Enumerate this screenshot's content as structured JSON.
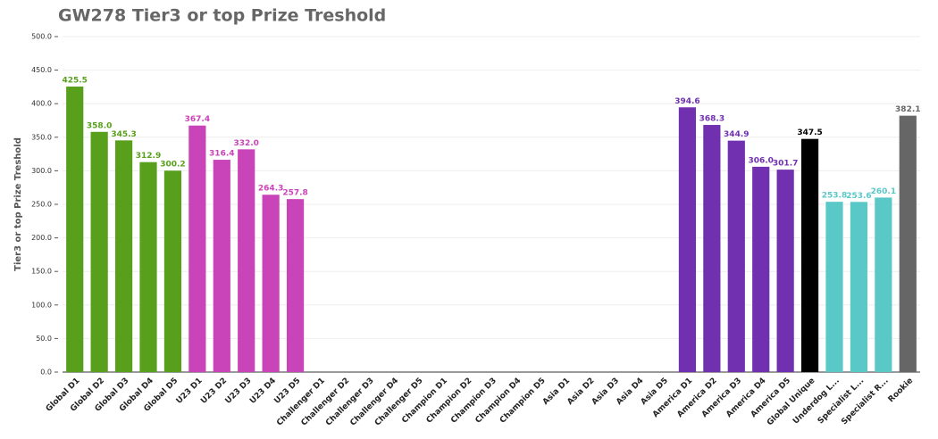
{
  "chart_data": {
    "type": "bar",
    "title": "GW278 Tier3 or top Prize Treshold",
    "y_label": "Tier3 or top Prize Treshold",
    "categories": [
      "Global D1",
      "Global D2",
      "Global D3",
      "Global D4",
      "Global D5",
      "U23 D1",
      "U23 D2",
      "U23 D3",
      "U23 D4",
      "U23 D5",
      "Challenger D1",
      "Challenger D2",
      "Challenger D3",
      "Challenger D4",
      "Challenger D5",
      "Champion D1",
      "Champion D2",
      "Champion D3",
      "Champion D4",
      "Champion D5",
      "Asia D1",
      "Asia D2",
      "Asia D3",
      "Asia D4",
      "Asia D5",
      "America D1",
      "America D2",
      "America D3",
      "America D4",
      "America D5",
      "Global Unique",
      "Underdog L...",
      "Specialist L...",
      "Specialist R...",
      "Rookie"
    ],
    "values": [
      425.5,
      358.0,
      345.3,
      312.9,
      300.2,
      367.4,
      316.4,
      332.0,
      264.3,
      257.8,
      null,
      null,
      null,
      null,
      null,
      null,
      null,
      null,
      null,
      null,
      null,
      null,
      null,
      null,
      null,
      394.6,
      368.3,
      344.9,
      306.0,
      301.7,
      347.5,
      253.8,
      253.6,
      260.1,
      382.1
    ],
    "value_labels": [
      "425.5",
      "358.0",
      "345.3",
      "312.9",
      "300.2",
      "367.4",
      "316.4",
      "332.0",
      "264.3",
      "257.8",
      null,
      null,
      null,
      null,
      null,
      null,
      null,
      null,
      null,
      null,
      null,
      null,
      null,
      null,
      null,
      "394.6",
      "368.3",
      "344.9",
      "306.0",
      "301.7",
      "347.5",
      "253.8",
      "253.6",
      "260.1",
      "382.1"
    ],
    "colors": [
      "#58a01c",
      "#58a01c",
      "#58a01c",
      "#58a01c",
      "#58a01c",
      "#c944b8",
      "#c944b8",
      "#c944b8",
      "#c944b8",
      "#c944b8",
      "#888888",
      "#888888",
      "#888888",
      "#888888",
      "#888888",
      "#888888",
      "#888888",
      "#888888",
      "#888888",
      "#888888",
      "#888888",
      "#888888",
      "#888888",
      "#888888",
      "#888888",
      "#7030b0",
      "#7030b0",
      "#7030b0",
      "#7030b0",
      "#7030b0",
      "#000000",
      "#5bc8c8",
      "#5bc8c8",
      "#5bc8c8",
      "#666666"
    ],
    "ylim": [
      0,
      500
    ],
    "yticks": [
      {
        "value": 0,
        "label": "0.0"
      },
      {
        "value": 50,
        "label": "50.0"
      },
      {
        "value": 100,
        "label": "100.0"
      },
      {
        "value": 150,
        "label": "150.0"
      },
      {
        "value": 200,
        "label": "200.0"
      },
      {
        "value": 250,
        "label": "250.0"
      },
      {
        "value": 300,
        "label": "300.0"
      },
      {
        "value": 350,
        "label": "350.0"
      },
      {
        "value": 400,
        "label": "400.0"
      },
      {
        "value": 450,
        "label": "450.0"
      },
      {
        "value": 500,
        "label": "500.0"
      }
    ],
    "grid": true
  }
}
